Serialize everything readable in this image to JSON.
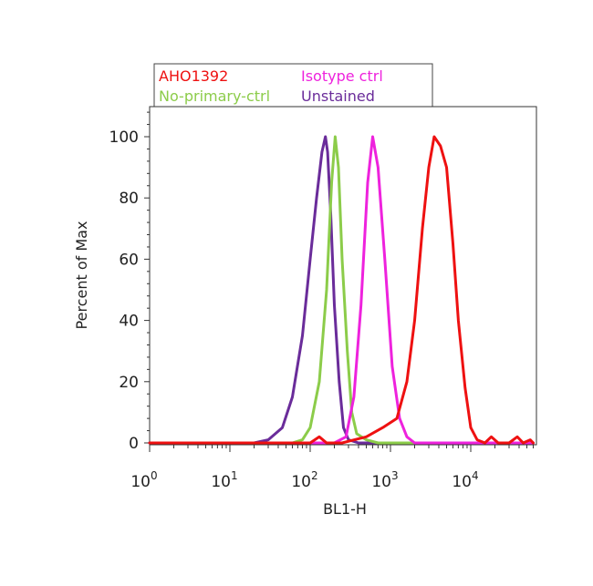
{
  "chart_data": {
    "type": "line",
    "xlabel": "BL1-H",
    "ylabel": "Percent of Max",
    "x_scale": "log",
    "xlim": [
      1,
      60000
    ],
    "ylim": [
      0,
      110
    ],
    "x_ticks": [
      {
        "value": 1,
        "base": "10",
        "exp": "0"
      },
      {
        "value": 10,
        "base": "10",
        "exp": "1"
      },
      {
        "value": 100,
        "base": "10",
        "exp": "2"
      },
      {
        "value": 1000,
        "base": "10",
        "exp": "3"
      },
      {
        "value": 10000,
        "base": "10",
        "exp": "4"
      }
    ],
    "y_ticks": [
      0,
      20,
      40,
      60,
      80,
      100
    ],
    "grid": false,
    "legend": "top",
    "series": [
      {
        "name": "Unstained",
        "color": "#6a2c9a",
        "points": [
          [
            1,
            0
          ],
          [
            20,
            0
          ],
          [
            30,
            1
          ],
          [
            45,
            5
          ],
          [
            60,
            15
          ],
          [
            80,
            35
          ],
          [
            100,
            60
          ],
          [
            120,
            80
          ],
          [
            140,
            95
          ],
          [
            155,
            100
          ],
          [
            165,
            95
          ],
          [
            180,
            75
          ],
          [
            200,
            45
          ],
          [
            230,
            20
          ],
          [
            260,
            5
          ],
          [
            300,
            1
          ],
          [
            400,
            0
          ],
          [
            60000,
            0
          ]
        ]
      },
      {
        "name": "No-primary-ctrl",
        "color": "#8ccc4a",
        "points": [
          [
            1,
            0
          ],
          [
            60,
            0
          ],
          [
            80,
            1
          ],
          [
            100,
            5
          ],
          [
            130,
            20
          ],
          [
            160,
            50
          ],
          [
            185,
            85
          ],
          [
            205,
            100
          ],
          [
            225,
            90
          ],
          [
            250,
            60
          ],
          [
            290,
            30
          ],
          [
            330,
            10
          ],
          [
            380,
            3
          ],
          [
            500,
            1
          ],
          [
            700,
            0
          ],
          [
            60000,
            0
          ]
        ]
      },
      {
        "name": "Isotype ctrl",
        "color": "#ee22dd",
        "points": [
          [
            1,
            0
          ],
          [
            200,
            0
          ],
          [
            280,
            2
          ],
          [
            350,
            15
          ],
          [
            430,
            45
          ],
          [
            520,
            85
          ],
          [
            600,
            100
          ],
          [
            700,
            90
          ],
          [
            850,
            60
          ],
          [
            1050,
            25
          ],
          [
            1300,
            8
          ],
          [
            1600,
            2
          ],
          [
            2000,
            0
          ],
          [
            60000,
            0
          ]
        ]
      },
      {
        "name": "AHO1392",
        "color": "#ee1111",
        "points": [
          [
            1,
            0
          ],
          [
            100,
            0
          ],
          [
            130,
            2
          ],
          [
            160,
            0
          ],
          [
            250,
            0
          ],
          [
            500,
            2
          ],
          [
            800,
            5
          ],
          [
            1200,
            8
          ],
          [
            1600,
            20
          ],
          [
            2000,
            40
          ],
          [
            2500,
            70
          ],
          [
            3000,
            90
          ],
          [
            3500,
            100
          ],
          [
            4200,
            97
          ],
          [
            5000,
            90
          ],
          [
            6000,
            65
          ],
          [
            7000,
            40
          ],
          [
            8500,
            18
          ],
          [
            10000,
            5
          ],
          [
            12000,
            1
          ],
          [
            15000,
            0
          ],
          [
            18000,
            2
          ],
          [
            22000,
            0
          ],
          [
            30000,
            0
          ],
          [
            38000,
            2
          ],
          [
            45000,
            0
          ],
          [
            55000,
            1
          ],
          [
            60000,
            0
          ]
        ]
      }
    ],
    "legend_entries": [
      "AHO1392",
      "Isotype ctrl",
      "No-primary-ctrl",
      "Unstained"
    ]
  }
}
